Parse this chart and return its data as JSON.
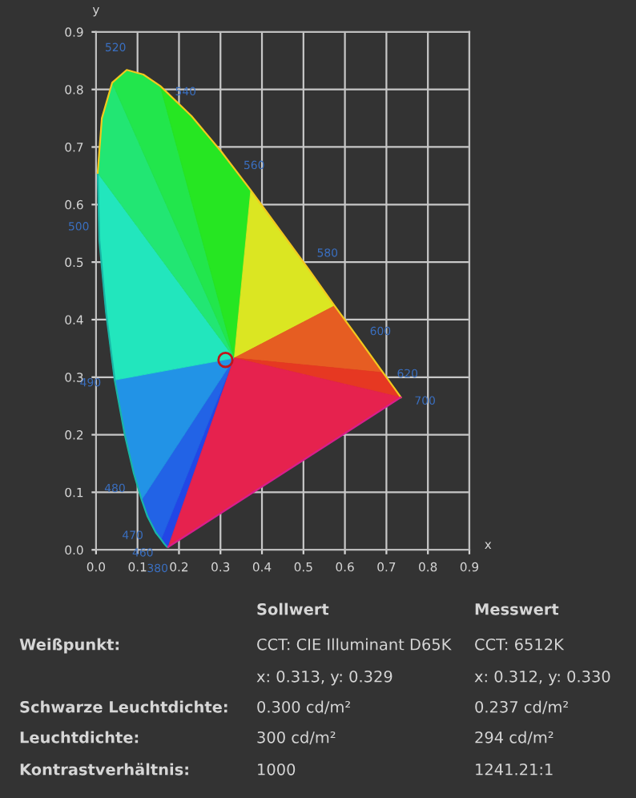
{
  "chart_data": {
    "type": "line",
    "xlabel": "x",
    "ylabel": "y",
    "xlim": [
      0,
      0.9
    ],
    "ylim": [
      0,
      0.9
    ],
    "xticks": [
      {
        "value": 0,
        "label": "0.0"
      },
      0.1,
      0.2,
      0.3,
      0.4,
      0.5,
      0.6,
      0.7,
      0.8,
      0.9
    ],
    "yticks": [
      {
        "value": 0,
        "label": "0.0"
      },
      0.1,
      0.2,
      0.3,
      0.4,
      0.5,
      0.6,
      0.7,
      0.8,
      0.9
    ],
    "grid": true,
    "series": [
      {
        "type": "line",
        "color": "#19b5a5",
        "x": [
          0.174,
          0.171,
          0.164,
          0.157,
          0.144,
          0.124,
          0.11,
          0.091,
          0.069,
          0.045,
          0.024,
          0.008,
          0.004
        ],
        "values": [
          0.005,
          0.005,
          0.011,
          0.018,
          0.03,
          0.058,
          0.087,
          0.133,
          0.201,
          0.295,
          0.413,
          0.538,
          0.655
        ]
      },
      {
        "type": "line",
        "color": "#f2c81e",
        "x": [
          0.004,
          0.014,
          0.039,
          0.074,
          0.114,
          0.155,
          0.23,
          0.302,
          0.373,
          0.444,
          0.513,
          0.575,
          0.627,
          0.666,
          0.692,
          0.719,
          0.73,
          0.735
        ],
        "values": [
          0.655,
          0.75,
          0.812,
          0.834,
          0.826,
          0.806,
          0.754,
          0.692,
          0.625,
          0.555,
          0.487,
          0.424,
          0.373,
          0.334,
          0.308,
          0.281,
          0.27,
          0.265
        ]
      },
      {
        "type": "line",
        "color": "#d81e8c",
        "x": [
          0.735,
          0.174
        ],
        "values": [
          0.265,
          0.005
        ]
      },
      {
        "type": "scatter",
        "color": "#c0151b",
        "marker": "circle",
        "x": [
          0.312
        ],
        "values": [
          0.33
        ]
      }
    ],
    "annotations": [
      {
        "text": "520",
        "x": 0.074,
        "y": 0.834
      },
      {
        "text": "540",
        "x": 0.23,
        "y": 0.754
      },
      {
        "text": "560",
        "x": 0.373,
        "y": 0.625
      },
      {
        "text": "580",
        "x": 0.513,
        "y": 0.487
      },
      {
        "text": "600",
        "x": 0.627,
        "y": 0.373
      },
      {
        "text": "620",
        "x": 0.692,
        "y": 0.308
      },
      {
        "text": "700",
        "x": 0.735,
        "y": 0.265
      },
      {
        "text": "500",
        "x": 0.008,
        "y": 0.538
      },
      {
        "text": "490",
        "x": 0.045,
        "y": 0.295
      },
      {
        "text": "480",
        "x": 0.091,
        "y": 0.133
      },
      {
        "text": "470",
        "x": 0.124,
        "y": 0.058
      },
      {
        "text": "460",
        "x": 0.144,
        "y": 0.03
      },
      {
        "text": "380",
        "x": 0.174,
        "y": 0.005
      },
      "Sollwert",
      "Messwert",
      "Weißpunkt:",
      "CCT: CIE Illuminant D65K",
      "CCT: 6512K",
      "x: 0.313, y: 0.329",
      "x: 0.312, y: 0.330",
      "Schwarze Leuchtdichte:",
      "0.300 cd/m²",
      "0.237 cd/m²",
      "Leuchtdichte:",
      "300 cd/m²",
      "294 cd/m²",
      "Kontrastverhältnis:",
      "1000",
      "1241.21:1"
    ]
  }
}
